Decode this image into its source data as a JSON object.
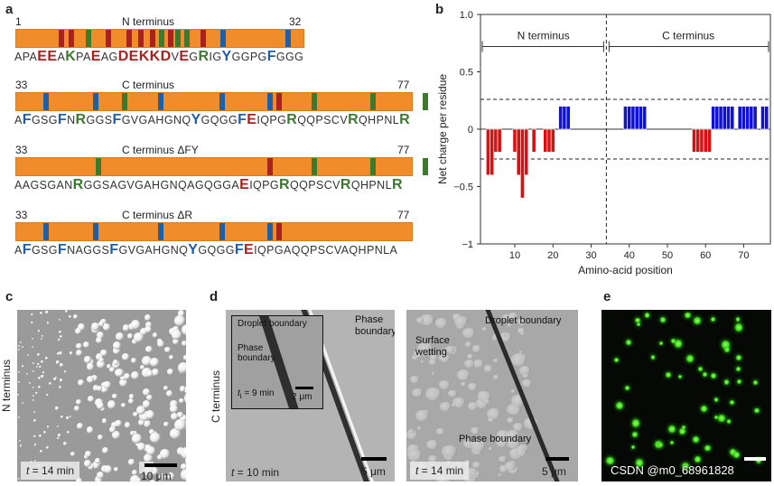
{
  "panels": {
    "a": {
      "label": "a",
      "rows": [
        {
          "start": "1",
          "end": "32",
          "title": "N terminus",
          "sequence": [
            {
              "t": "APA",
              "c": "n"
            },
            {
              "t": "EE",
              "c": "r",
              "b": 1
            },
            {
              "t": "A",
              "c": "n"
            },
            {
              "t": "K",
              "c": "g",
              "b": 1
            },
            {
              "t": "PA",
              "c": "n"
            },
            {
              "t": "E",
              "c": "r",
              "b": 1
            },
            {
              "t": "AG",
              "c": "n"
            },
            {
              "t": "DEKKD",
              "c": "r",
              "b": 1
            },
            {
              "t": "V",
              "c": "n"
            },
            {
              "t": "E",
              "c": "r",
              "b": 1
            },
            {
              "t": "G",
              "c": "n"
            },
            {
              "t": "R",
              "c": "g",
              "b": 1
            },
            {
              "t": "IG",
              "c": "n"
            },
            {
              "t": "Y",
              "c": "b",
              "b": 1
            },
            {
              "t": "GGPG",
              "c": "n"
            },
            {
              "t": "F",
              "c": "b",
              "b": 1
            },
            {
              "t": "GGG",
              "c": "n"
            }
          ]
        },
        {
          "start": "33",
          "end": "77",
          "title": "C terminus",
          "sequence": [
            {
              "t": "A",
              "c": "n"
            },
            {
              "t": "F",
              "c": "b",
              "b": 1
            },
            {
              "t": "GSG",
              "c": "n"
            },
            {
              "t": "F",
              "c": "b",
              "b": 1
            },
            {
              "t": "N",
              "c": "n"
            },
            {
              "t": "R",
              "c": "g",
              "b": 1
            },
            {
              "t": "GGS",
              "c": "n"
            },
            {
              "t": "F",
              "c": "b",
              "b": 1
            },
            {
              "t": "GVGAHGNQ",
              "c": "n"
            },
            {
              "t": "Y",
              "c": "b",
              "b": 1
            },
            {
              "t": "GQGG",
              "c": "n"
            },
            {
              "t": "F",
              "c": "b",
              "b": 1
            },
            {
              "t": "E",
              "c": "r",
              "b": 1
            },
            {
              "t": "IQPG",
              "c": "n"
            },
            {
              "t": "R",
              "c": "g",
              "b": 1
            },
            {
              "t": "QQPSCV",
              "c": "n"
            },
            {
              "t": "R",
              "c": "g",
              "b": 1
            },
            {
              "t": "QHPNL",
              "c": "n"
            },
            {
              "t": "R",
              "c": "g",
              "b": 1
            }
          ]
        },
        {
          "start": "33",
          "end": "77",
          "title": "C terminus ΔFY",
          "sequence": [
            {
              "t": "AAGSGAN",
              "c": "n"
            },
            {
              "t": "R",
              "c": "g",
              "b": 1
            },
            {
              "t": "GGSAGVGAHGNQAGQGGA",
              "c": "n"
            },
            {
              "t": "E",
              "c": "r",
              "b": 1
            },
            {
              "t": "IQPG",
              "c": "n"
            },
            {
              "t": "R",
              "c": "g",
              "b": 1
            },
            {
              "t": "QQPSCV",
              "c": "n"
            },
            {
              "t": "R",
              "c": "g",
              "b": 1
            },
            {
              "t": "QHPNL",
              "c": "n"
            },
            {
              "t": "R",
              "c": "g",
              "b": 1
            }
          ]
        },
        {
          "start": "33",
          "end": "77",
          "title": "C terminus ΔR",
          "sequence": [
            {
              "t": "A",
              "c": "n"
            },
            {
              "t": "F",
              "c": "b",
              "b": 1
            },
            {
              "t": "GSG",
              "c": "n"
            },
            {
              "t": "F",
              "c": "b",
              "b": 1
            },
            {
              "t": "NAGGS",
              "c": "n"
            },
            {
              "t": "F",
              "c": "b",
              "b": 1
            },
            {
              "t": "GVGAHGNQ",
              "c": "n"
            },
            {
              "t": "Y",
              "c": "b",
              "b": 1
            },
            {
              "t": "GQGG",
              "c": "n"
            },
            {
              "t": "F",
              "c": "b",
              "b": 1
            },
            {
              "t": "E",
              "c": "r",
              "b": 1
            },
            {
              "t": "IQPGAQQPSCVAQHPNLA",
              "c": "n"
            }
          ]
        }
      ],
      "colors": {
        "orange": "#f08c2a",
        "red": "#a8231f",
        "green": "#3d7a2e",
        "blue": "#1f5fa8"
      }
    },
    "b": {
      "label": "b",
      "n_label": "N terminus",
      "c_label": "C terminus"
    },
    "c": {
      "label": "c",
      "side_label": "N terminus",
      "time_t": "t",
      "time_rest": " = 14 min",
      "scale": "10 μm"
    },
    "d": {
      "label": "d",
      "side_label": "C terminus",
      "left_time_t": "t",
      "left_time_rest": " = 10 min",
      "left_scale": "5 μm",
      "inset_droplet": "Droplet boundary",
      "inset_phase": "Phase\nboundary",
      "inset_time": "= 9 min",
      "inset_time_t": "t",
      "inset_time_sub": "i",
      "inset_scale": "2 μm",
      "phase_boundary": "Phase\nboundary",
      "right_droplet": "Droplet boundary",
      "right_surface": "Surface\nwetting",
      "right_phase": "Phase boundary",
      "right_time_t": "t",
      "right_time_rest": " = 14 min",
      "right_scale": "5 μm"
    },
    "e": {
      "label": "e"
    }
  },
  "chart_data": {
    "type": "bar",
    "title": "",
    "xlabel": "Amino-acid position",
    "ylabel": "Net charge per residue",
    "xlim": [
      1,
      77
    ],
    "ylim": [
      -1,
      1
    ],
    "xticks": [
      10,
      20,
      30,
      40,
      50,
      60,
      70
    ],
    "yticks": [
      -1,
      -0.5,
      0,
      0.5,
      1
    ],
    "ytick_labels": [
      "−1",
      "−0.5",
      "0",
      "0.5",
      "1.0"
    ],
    "threshold_lines": [
      0.26,
      -0.26
    ],
    "divider_x": 34,
    "x": [
      3,
      4,
      5,
      6,
      10,
      11,
      12,
      13,
      15,
      18,
      19,
      20,
      22,
      23,
      24,
      39,
      40,
      41,
      42,
      43,
      44,
      57,
      58,
      59,
      60,
      61,
      62,
      63,
      64,
      65,
      66,
      67,
      69,
      70,
      71,
      72,
      73,
      75,
      76
    ],
    "values": [
      -0.4,
      -0.4,
      -0.2,
      -0.2,
      -0.2,
      -0.4,
      -0.6,
      -0.4,
      -0.2,
      -0.2,
      -0.2,
      -0.2,
      0.2,
      0.2,
      0.2,
      0.2,
      0.2,
      0.2,
      0.2,
      0.2,
      0.2,
      -0.2,
      -0.2,
      -0.2,
      -0.2,
      -0.2,
      0.2,
      0.2,
      0.2,
      0.2,
      0.2,
      0.2,
      0.2,
      0.2,
      0.2,
      0.2,
      0.2,
      0.2,
      0.2
    ],
    "pos_color": "#1010d8",
    "neg_color": "#d81010"
  },
  "watermark": "CSDN @m0_68961828"
}
